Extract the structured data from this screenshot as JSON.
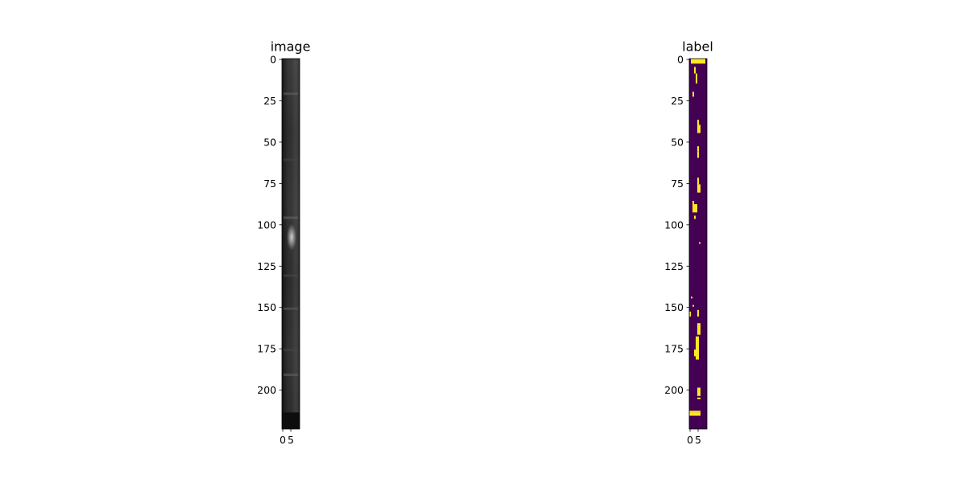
{
  "chart_data": [
    {
      "type": "heatmap",
      "title": "image",
      "colormap": "gray",
      "image_shape": [
        224,
        11
      ],
      "x_ticks": [
        0,
        5
      ],
      "y_ticks": [
        0,
        25,
        50,
        75,
        100,
        125,
        150,
        175,
        200
      ],
      "xlim": [
        -0.5,
        10.5
      ],
      "ylim": [
        223.5,
        -0.5
      ],
      "features": [
        {
          "rows": [
            0,
            214
          ],
          "value": 0.3
        },
        {
          "rows": [
            214,
            224
          ],
          "value": 0.05
        },
        {
          "rows": [
            100,
            116
          ],
          "value": 0.8
        }
      ]
    },
    {
      "type": "heatmap",
      "title": "label",
      "colormap": "viridis",
      "image_shape": [
        224,
        11
      ],
      "x_ticks": [
        0,
        5
      ],
      "y_ticks": [
        0,
        25,
        50,
        75,
        100,
        125,
        150,
        175,
        200
      ],
      "xlim": [
        -0.5,
        10.5
      ],
      "ylim": [
        223.5,
        -0.5
      ],
      "background_color": "#440154",
      "foreground_color": "#fde725",
      "cells": [
        [
          0,
          1,
          9,
          3
        ],
        [
          5,
          3,
          1,
          4
        ],
        [
          9,
          4,
          1,
          6
        ],
        [
          20,
          2,
          1,
          3
        ],
        [
          37,
          5,
          1,
          3
        ],
        [
          40,
          5,
          2,
          5
        ],
        [
          53,
          5,
          1,
          3
        ],
        [
          56,
          5,
          1,
          4
        ],
        [
          72,
          5,
          1,
          4
        ],
        [
          76,
          5,
          2,
          5
        ],
        [
          86,
          2,
          1,
          5
        ],
        [
          88,
          2,
          3,
          5
        ],
        [
          95,
          3,
          1,
          2
        ],
        [
          111,
          6,
          1,
          1
        ],
        [
          144,
          1,
          1,
          1
        ],
        [
          149,
          2,
          1,
          1
        ],
        [
          152,
          5,
          1,
          4
        ],
        [
          153,
          0,
          1,
          3
        ],
        [
          160,
          5,
          2,
          7
        ],
        [
          168,
          4,
          2,
          14
        ],
        [
          176,
          3,
          1,
          4
        ],
        [
          199,
          5,
          2,
          5
        ],
        [
          205,
          5,
          2,
          1
        ],
        [
          213,
          0,
          7,
          1
        ],
        [
          214,
          0,
          7,
          2
        ]
      ]
    }
  ]
}
